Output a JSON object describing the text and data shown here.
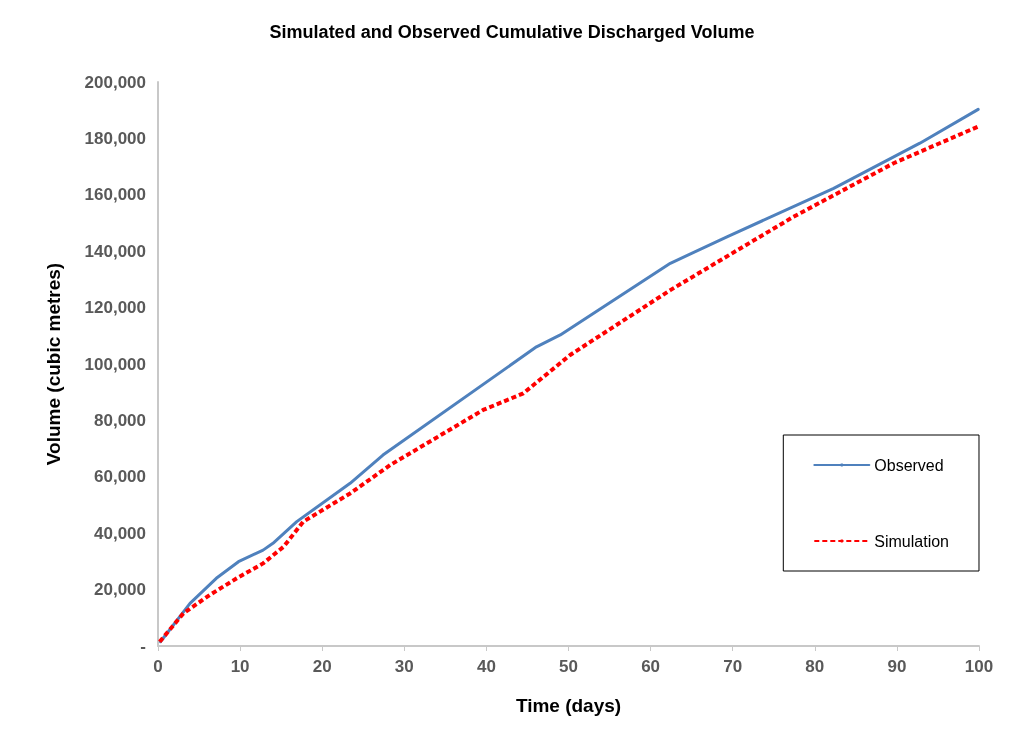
{
  "chart_data": {
    "type": "line",
    "title": "Simulated and Observed Cumulative Discharged Volume",
    "xlabel": "Time (days)",
    "ylabel": "Volume (cubic metres)",
    "xlim": [
      0,
      100
    ],
    "xticks": [
      0,
      10,
      20,
      30,
      40,
      50,
      60,
      70,
      80,
      90,
      100
    ],
    "ylim": [
      0,
      200000
    ],
    "yticks": [
      {
        "value": 0,
        "label": "-"
      },
      {
        "value": 20000,
        "label": "20,000"
      },
      {
        "value": 40000,
        "label": "40,000"
      },
      {
        "value": 60000,
        "label": "60,000"
      },
      {
        "value": 80000,
        "label": "80,000"
      },
      {
        "value": 100000,
        "label": "100,000"
      },
      {
        "value": 120000,
        "label": "120,000"
      },
      {
        "value": 140000,
        "label": "140,000"
      },
      {
        "value": 160000,
        "label": "160,000"
      },
      {
        "value": 180000,
        "label": "180,000"
      },
      {
        "value": 200000,
        "label": "200,000"
      }
    ],
    "grid": false,
    "legend": "right",
    "marker": "none",
    "series": [
      {
        "name": "Observed",
        "color": "#4f81bd",
        "line_style": "solid",
        "x": [
          0.3,
          3.9,
          7.1,
          9.8,
          12.8,
          14.0,
          16.9,
          23.4,
          27.4,
          46.1,
          49.0,
          62.4,
          69.3,
          82.3,
          92.8,
          99.9
        ],
        "values": [
          1500,
          15100,
          24000,
          29900,
          34000,
          36400,
          44100,
          57700,
          67700,
          106100,
          110300,
          135700,
          145100,
          162300,
          178300,
          190300
        ]
      },
      {
        "name": "Simulation",
        "color": "#ff0000",
        "line_style": "dashed",
        "x": [
          0.2,
          3.1,
          6.3,
          9.6,
          12.8,
          15.3,
          17.7,
          23.4,
          28.3,
          39.6,
          44.5,
          50.2,
          62.4,
          77.4,
          89.6,
          99.9
        ],
        "values": [
          1500,
          11600,
          18100,
          24000,
          29300,
          35200,
          44100,
          54100,
          64200,
          83700,
          89600,
          103200,
          126200,
          152200,
          171200,
          184200
        ]
      }
    ]
  }
}
